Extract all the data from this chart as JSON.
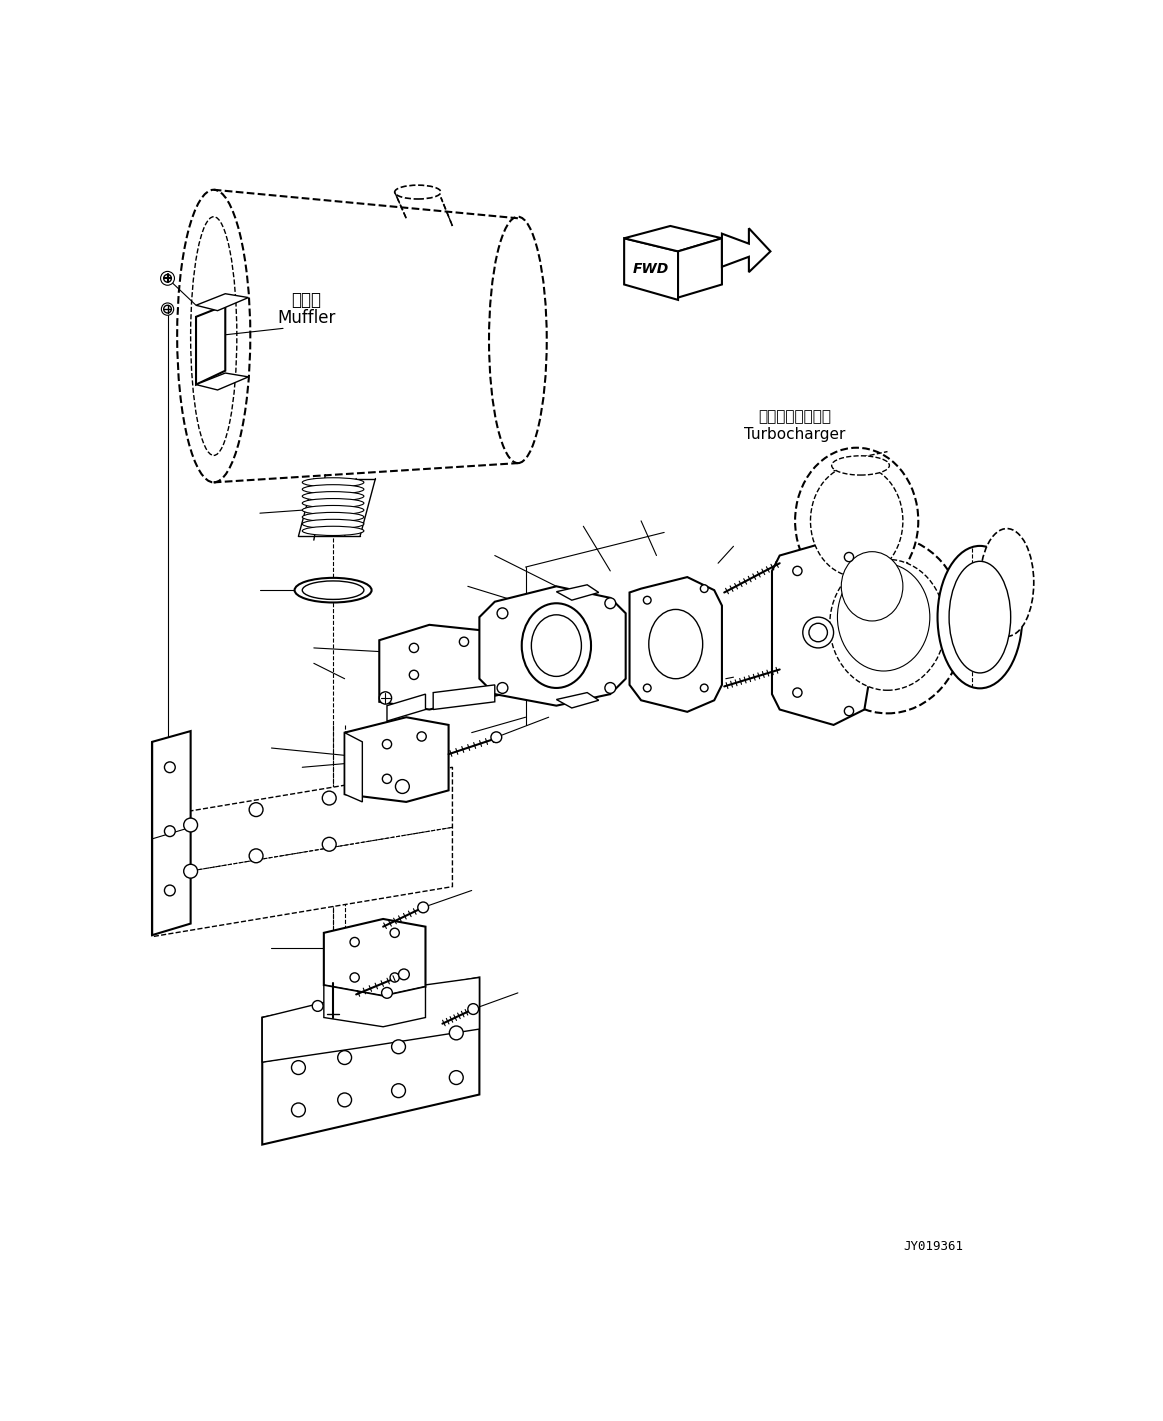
{
  "background_color": "#ffffff",
  "fig_width": 11.63,
  "fig_height": 14.21,
  "label_muffler_ja": "マフラ",
  "label_muffler_en": "Muffler",
  "label_turbo_ja": "ターボチャージャ",
  "label_turbo_en": "Turbocharger",
  "label_fwd": "FWD",
  "label_code": "JY019361",
  "dpi": 100
}
